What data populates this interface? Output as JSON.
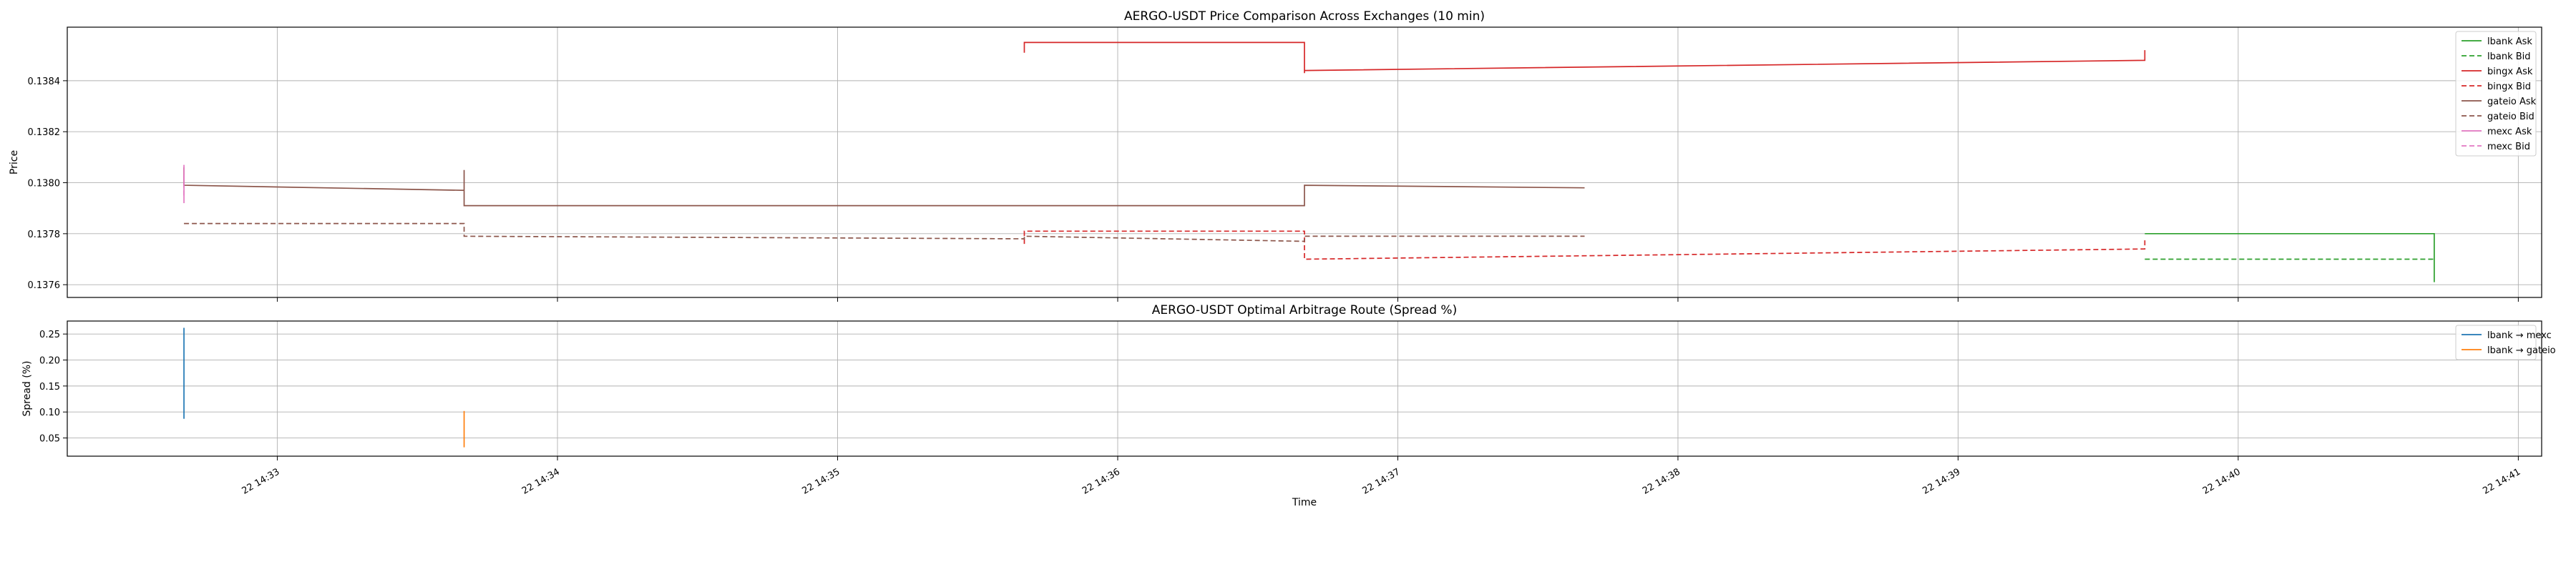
{
  "chart_data": [
    {
      "type": "line",
      "title": "AERGO-USDT Price Comparison Across Exchanges (10 min)",
      "xlabel": "",
      "ylabel": "Price",
      "xlim": [
        "22 14:32:15",
        "22 14:41:05"
      ],
      "ylim": [
        0.13755,
        0.13861
      ],
      "y_ticks": [
        "0.1376",
        "0.1378",
        "0.1380",
        "0.1382",
        "0.1384"
      ],
      "x_tick_labels": [
        "22 14:33",
        "22 14:34",
        "22 14:35",
        "22 14:36",
        "22 14:37",
        "22 14:38",
        "22 14:39",
        "22 14:40",
        "22 14:41"
      ],
      "grid": true,
      "legend_position": "upper right",
      "series": [
        {
          "name": "lbank Ask",
          "color": "#2ca02c",
          "dash": "solid",
          "points": [
            [
              "22 14:39:40",
              0.1378
            ],
            [
              "22 14:40:42",
              0.1378
            ],
            [
              "22 14:40:42",
              0.13761
            ]
          ]
        },
        {
          "name": "lbank Bid",
          "color": "#2ca02c",
          "dash": "dashed",
          "points": [
            [
              "22 14:39:40",
              0.1377
            ],
            [
              "22 14:40:42",
              0.1377
            ]
          ]
        },
        {
          "name": "bingx Ask",
          "color": "#d62728",
          "dash": "solid",
          "points": [
            [
              "22 14:35:40",
              0.13851
            ],
            [
              "22 14:35:40",
              0.13855
            ],
            [
              "22 14:36:40",
              0.13855
            ],
            [
              "22 14:36:40",
              0.13843
            ],
            [
              "22 14:36:40",
              0.13844
            ],
            [
              "22 14:39:40",
              0.13848
            ],
            [
              "22 14:39:40",
              0.13852
            ]
          ]
        },
        {
          "name": "bingx Bid",
          "color": "#d62728",
          "dash": "dashed",
          "points": [
            [
              "22 14:35:40",
              0.13776
            ],
            [
              "22 14:35:40",
              0.13781
            ],
            [
              "22 14:36:40",
              0.13781
            ],
            [
              "22 14:36:40",
              0.1377
            ],
            [
              "22 14:39:40",
              0.13774
            ],
            [
              "22 14:39:40",
              0.13778
            ]
          ]
        },
        {
          "name": "gateio Ask",
          "color": "#8c564b",
          "dash": "solid",
          "points": [
            [
              "22 14:32:40",
              0.13806
            ],
            [
              "22 14:32:40",
              0.13799
            ],
            [
              "22 14:33:40",
              0.13797
            ],
            [
              "22 14:33:40",
              0.13805
            ],
            [
              "22 14:33:40",
              0.13791
            ],
            [
              "22 14:36:40",
              0.13791
            ],
            [
              "22 14:36:40",
              0.13799
            ],
            [
              "22 14:37:40",
              0.13798
            ]
          ]
        },
        {
          "name": "gateio Bid",
          "color": "#8c564b",
          "dash": "dashed",
          "points": [
            [
              "22 14:32:40",
              0.13784
            ],
            [
              "22 14:33:40",
              0.13784
            ],
            [
              "22 14:33:40",
              0.13779
            ],
            [
              "22 14:35:40",
              0.13778
            ],
            [
              "22 14:35:40",
              0.13779
            ],
            [
              "22 14:36:40",
              0.13777
            ],
            [
              "22 14:36:40",
              0.13779
            ],
            [
              "22 14:37:40",
              0.13779
            ]
          ]
        },
        {
          "name": "mexc Ask",
          "color": "#e377c2",
          "dash": "solid",
          "points": [
            [
              "22 14:32:40",
              0.13792
            ],
            [
              "22 14:32:40",
              0.13807
            ]
          ]
        },
        {
          "name": "mexc Bid",
          "color": "#e377c2",
          "dash": "dashed",
          "points": [
            [
              "22 14:32:40",
              0.13795
            ],
            [
              "22 14:32:40",
              0.13803
            ]
          ]
        }
      ]
    },
    {
      "type": "line",
      "title": "AERGO-USDT Optimal Arbitrage Route (Spread %)",
      "xlabel": "Time",
      "ylabel": "Spread (%)",
      "xlim": [
        "22 14:32:15",
        "22 14:41:05"
      ],
      "ylim": [
        0.015,
        0.275
      ],
      "y_ticks": [
        "0.05",
        "0.10",
        "0.15",
        "0.20",
        "0.25"
      ],
      "x_tick_labels": [
        "22 14:33",
        "22 14:34",
        "22 14:35",
        "22 14:36",
        "22 14:37",
        "22 14:38",
        "22 14:39",
        "22 14:40",
        "22 14:41"
      ],
      "grid": true,
      "legend_position": "upper right",
      "series": [
        {
          "name": "lbank → mexc",
          "color": "#1f77b4",
          "dash": "solid",
          "points": [
            [
              "22 14:32:40",
              0.087
            ],
            [
              "22 14:32:40",
              0.262
            ]
          ]
        },
        {
          "name": "lbank → gateio",
          "color": "#ff7f0e",
          "dash": "solid",
          "points": [
            [
              "22 14:33:40",
              0.032
            ],
            [
              "22 14:33:40",
              0.102
            ]
          ]
        }
      ]
    }
  ]
}
